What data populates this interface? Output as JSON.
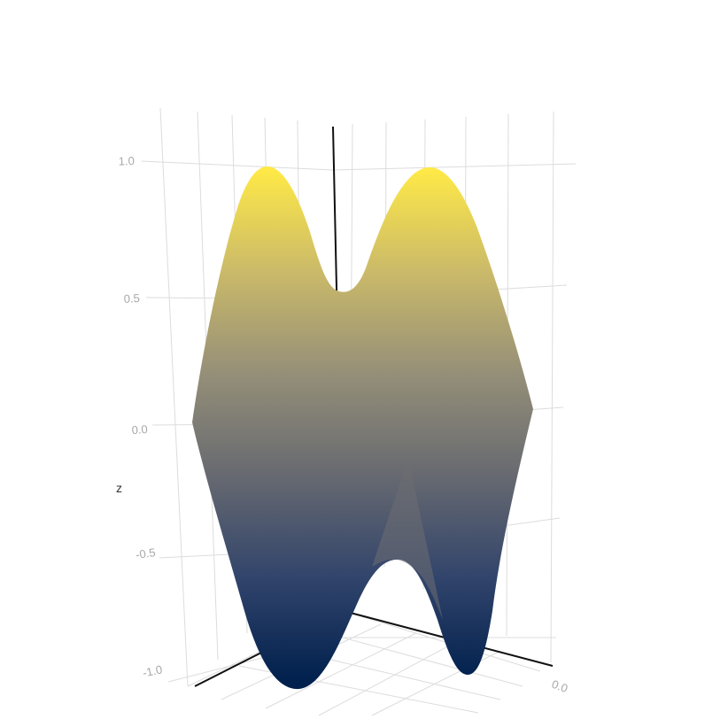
{
  "chart_data": {
    "type": "surface3d",
    "title": "",
    "zlabel": "z",
    "zlim": [
      -1.1,
      1.15
    ],
    "z_ticks": [
      "1.0",
      "0.5",
      "0.0",
      "-0.5",
      "-1.0"
    ],
    "x_tick_partial": "0.0",
    "colorscale": [
      "#00204d",
      "#31446b",
      "#666970",
      "#958f78",
      "#cbba69",
      "#ffea46"
    ],
    "surface": {
      "description_free": true,
      "peaks": [
        {
          "label": "left-peak",
          "z": 0.98
        },
        {
          "label": "right-peak",
          "z": 0.98
        }
      ],
      "saddle_top_z": 0.5,
      "troughs": [
        {
          "label": "left-trough",
          "z": -1.0
        },
        {
          "label": "right-trough",
          "z": -0.95
        }
      ],
      "saddle_bottom_z": -0.55
    },
    "grid": true,
    "legend": "none"
  },
  "colors": {
    "grid": "#dcdcdc",
    "axis": "#111111",
    "tick": "#a8a8a8"
  }
}
